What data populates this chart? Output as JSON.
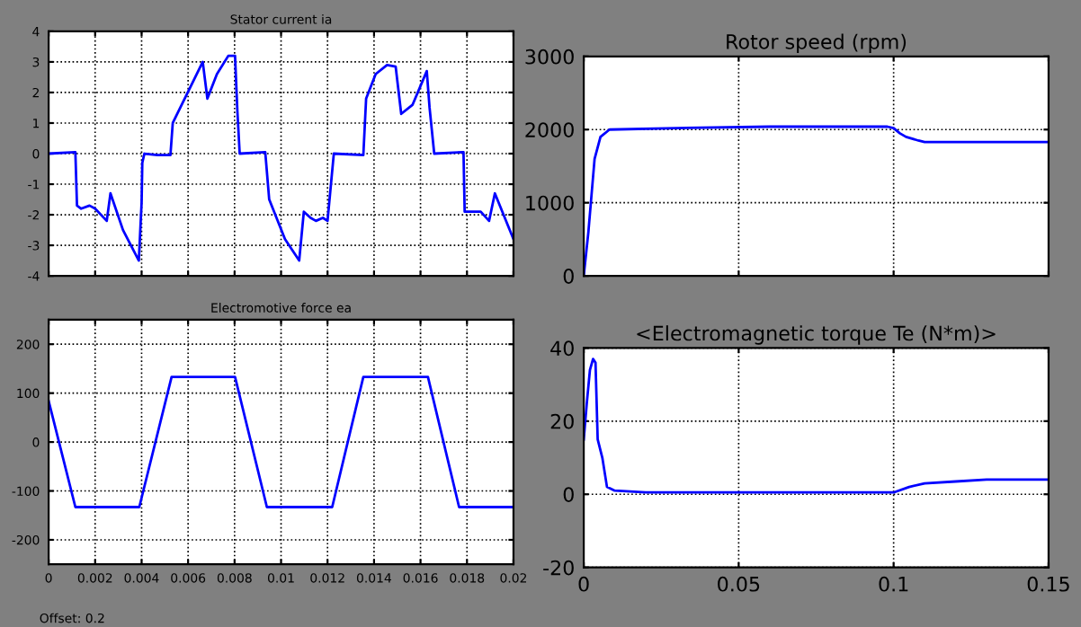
{
  "chart_data": [
    {
      "type": "line",
      "title": "Stator current ia",
      "x": [
        0,
        0.00115,
        0.00122,
        0.0014,
        0.00176,
        0.002,
        0.0025,
        0.00266,
        0.0032,
        0.00388,
        0.004,
        0.00403,
        0.00412,
        0.00468,
        0.00524,
        0.00534,
        0.00663,
        0.00683,
        0.00724,
        0.00773,
        0.00802,
        0.00812,
        0.00822,
        0.00932,
        0.00949,
        0.01017,
        0.01078,
        0.01098,
        0.01127,
        0.0115,
        0.0118,
        0.012,
        0.01227,
        0.01354,
        0.01366,
        0.01407,
        0.01456,
        0.01493,
        0.01517,
        0.01566,
        0.01627,
        0.01639,
        0.01659,
        0.01785,
        0.0179,
        0.01859,
        0.01895,
        0.0192,
        0.02
      ],
      "series": [
        {
          "color": "#0000ff",
          "values": [
            0,
            0.05,
            -1.7,
            -1.8,
            -1.7,
            -1.8,
            -2.2,
            -1.3,
            -2.5,
            -3.5,
            -1.6,
            -0.3,
            0,
            -0.05,
            -0.05,
            1.0,
            3.0,
            1.8,
            2.6,
            3.2,
            3.2,
            1.4,
            0,
            0.05,
            -1.5,
            -2.8,
            -3.5,
            -1.9,
            -2.1,
            -2.2,
            -2.1,
            -2.2,
            0,
            -0.05,
            1.8,
            2.6,
            2.9,
            2.85,
            1.3,
            1.6,
            2.7,
            1.5,
            0,
            0.05,
            -1.9,
            -1.9,
            -2.2,
            -1.3,
            -2.8
          ]
        }
      ],
      "xlim": [
        0,
        0.02
      ],
      "xticks": [
        0,
        0.002,
        0.004,
        0.006,
        0.008,
        0.01,
        0.012,
        0.014,
        0.016,
        0.018,
        0.02
      ],
      "ylim": [
        -4,
        4
      ],
      "yticks": [
        -4,
        -3,
        -2,
        -1,
        0,
        1,
        2,
        3,
        4
      ],
      "tick_labels": "y",
      "grid": true
    },
    {
      "type": "line",
      "title": "Electromotive force ea",
      "x": [
        0,
        0.00115,
        0.0039,
        0.00529,
        0.00802,
        0.00939,
        0.0122,
        0.01354,
        0.01632,
        0.01766,
        0.02
      ],
      "series": [
        {
          "color": "#0000ff",
          "values": [
            84,
            -133,
            -133,
            133,
            133,
            -133,
            -133,
            133,
            133,
            -133,
            -133
          ]
        }
      ],
      "xlim": [
        0,
        0.02
      ],
      "xticks": [
        0,
        0.002,
        0.004,
        0.006,
        0.008,
        0.01,
        0.012,
        0.014,
        0.016,
        0.018,
        0.02
      ],
      "ylim": [
        -250,
        250
      ],
      "yticks": [
        -200,
        -100,
        0,
        100,
        200
      ],
      "grid": true,
      "annotations": [
        "Offset: 0.2"
      ]
    },
    {
      "type": "line",
      "title": "Rotor speed (rpm)",
      "x": [
        0,
        0.0015,
        0.0035,
        0.0054,
        0.0083,
        0.03,
        0.06,
        0.098,
        0.1,
        0.102,
        0.104,
        0.108,
        0.11,
        0.15
      ],
      "series": [
        {
          "color": "#0000ff",
          "values": [
            0,
            600,
            1600,
            1900,
            2000,
            2020,
            2040,
            2040,
            2020,
            1950,
            1900,
            1850,
            1830,
            1830
          ]
        }
      ],
      "xlim": [
        0,
        0.15
      ],
      "xticks": [
        0,
        0.05,
        0.1,
        0.15
      ],
      "ylim": [
        0,
        3000
      ],
      "yticks": [
        0,
        1000,
        2000,
        3000
      ],
      "tick_labels": "y",
      "grid": true
    },
    {
      "type": "line",
      "title": "<Electromagnetic torque Te (N*m)>",
      "x": [
        0,
        0.001,
        0.002,
        0.003,
        0.0038,
        0.0045,
        0.006,
        0.0075,
        0.01,
        0.02,
        0.04,
        0.06,
        0.08,
        0.1,
        0.105,
        0.11,
        0.12,
        0.13,
        0.15
      ],
      "series": [
        {
          "color": "#0000ff",
          "values": [
            15,
            25,
            34,
            37,
            36,
            15,
            10,
            2,
            1,
            0.5,
            0.5,
            0.5,
            0.5,
            0.5,
            2,
            3,
            3.5,
            4,
            4
          ]
        }
      ],
      "xlim": [
        0,
        0.15
      ],
      "xticks": [
        0,
        0.05,
        0.1,
        0.15
      ],
      "ylim": [
        -20,
        40
      ],
      "yticks": [
        -20,
        0,
        20,
        40
      ],
      "grid": true
    }
  ]
}
